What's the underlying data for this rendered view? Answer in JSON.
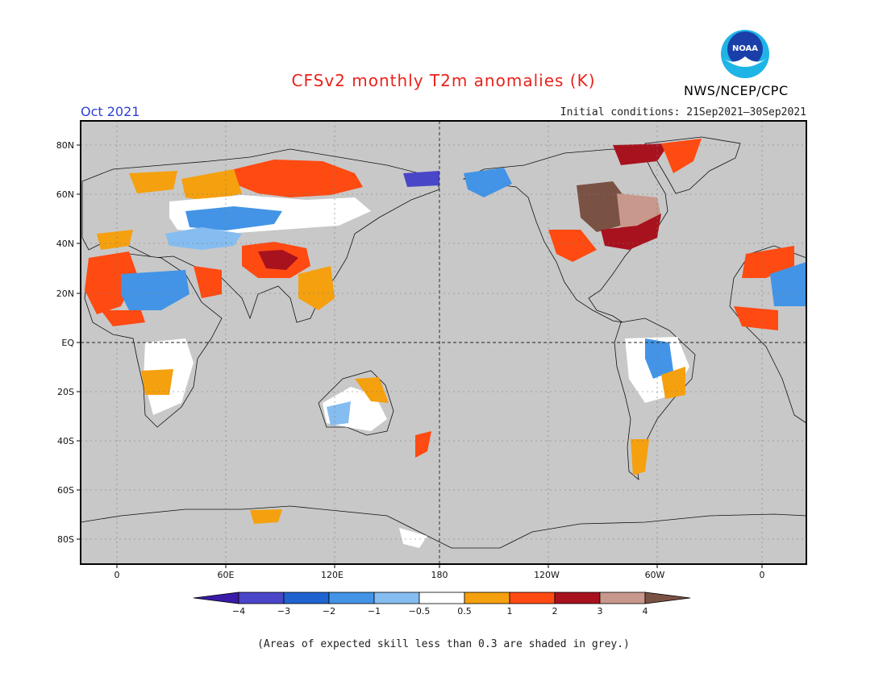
{
  "title": "CFSv2 monthly T2m anomalies (K)",
  "valid_month": "Oct 2021",
  "initial_conditions": "Initial conditions: 21Sep2021–30Sep2021",
  "agency": "NWS/NCEP/CPC",
  "logo_text": "NOAA",
  "footnote": "(Areas of expected skill less than 0.3 are shaded in grey.)",
  "lat_labels": [
    "80N",
    "60N",
    "40N",
    "20N",
    "EQ",
    "20S",
    "40S",
    "60S",
    "80S"
  ],
  "lon_labels": [
    "0",
    "60E",
    "120E",
    "180",
    "120W",
    "60W",
    "0"
  ],
  "colorbar": {
    "labels": [
      "−4",
      "−3",
      "−2",
      "−1",
      "−0.5",
      "0.5",
      "1",
      "2",
      "3",
      "4"
    ],
    "colors": [
      "#3a1aa8",
      "#4a46c8",
      "#1f63d0",
      "#4394e6",
      "#86bdf0",
      "#ffffff",
      "#f5a00e",
      "#ff4a12",
      "#a8121e",
      "#c8988c",
      "#7a5244"
    ]
  },
  "colors": {
    "title": "#e8231c",
    "month": "#2b3fd6",
    "land_grey": "#c8c8c8"
  }
}
